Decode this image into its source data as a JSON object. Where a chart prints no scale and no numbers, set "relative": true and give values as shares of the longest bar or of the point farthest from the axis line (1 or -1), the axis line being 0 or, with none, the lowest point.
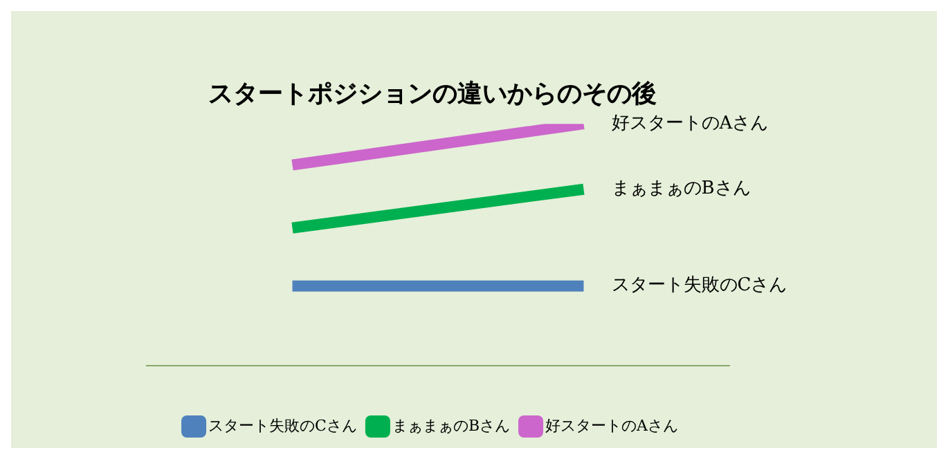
{
  "chart_data": {
    "type": "line",
    "title": "スタートポジションの違いからのその後",
    "relative": true,
    "categories": [
      null,
      null
    ],
    "series": [
      {
        "name": "スタート失敗のCさん",
        "color": "#4f81bd",
        "values": [
          0.33,
          0.33
        ]
      },
      {
        "name": "まぁまぁのBさん",
        "color": "#00b050",
        "values": [
          0.57,
          0.73
        ]
      },
      {
        "name": "好スタートのAさん",
        "color": "#cc66cc",
        "values": [
          0.83,
          1
        ]
      }
    ],
    "legend": "bottom",
    "marker": "none",
    "line_style": "solid"
  }
}
